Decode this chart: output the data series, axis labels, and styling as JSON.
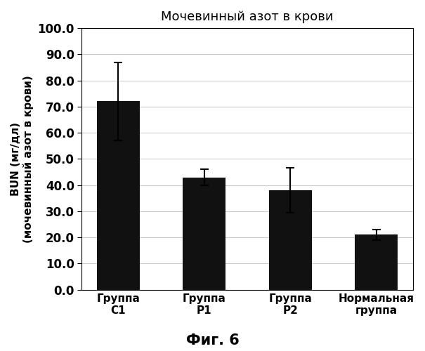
{
  "title": "Мочевинный азот в крови",
  "ylabel_line1": "BUN (мг/дл)",
  "ylabel_line2": "(мочевинный азот в крови)",
  "xlabel_fig": "Фиг. 6",
  "categories": [
    "Группа\nС1",
    "Группа\nР1",
    "Группа\nР2",
    "Нормальная\nгруппа"
  ],
  "values": [
    72.0,
    43.0,
    38.0,
    21.0
  ],
  "errors": [
    15.0,
    3.0,
    8.5,
    2.0
  ],
  "bar_color": "#111111",
  "ylim": [
    0.0,
    100.0
  ],
  "yticks": [
    0.0,
    10.0,
    20.0,
    30.0,
    40.0,
    50.0,
    60.0,
    70.0,
    80.0,
    90.0,
    100.0
  ],
  "background_color": "#ffffff",
  "grid_color": "#cccccc",
  "title_fontsize": 13,
  "axis_label_fontsize": 11,
  "tick_fontsize": 12,
  "xtick_fontsize": 11,
  "fig_label_fontsize": 15
}
